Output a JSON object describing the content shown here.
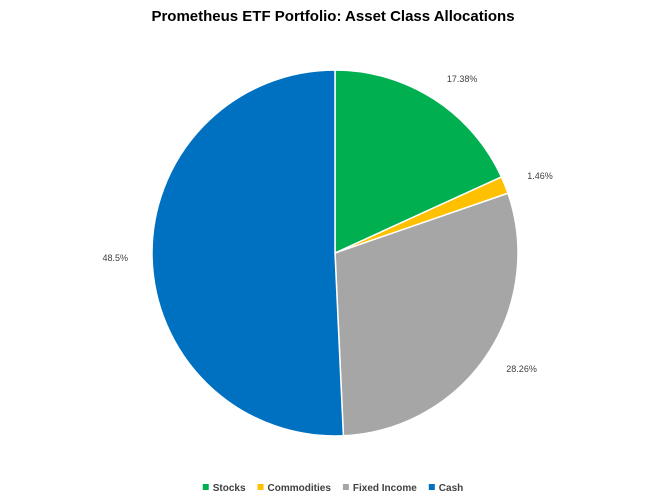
{
  "chart_data": {
    "type": "pie",
    "title": "Prometheus ETF Portfolio: Asset Class Allocations",
    "categories": [
      "Stocks",
      "Commodities",
      "Fixed Income",
      "Cash"
    ],
    "values": [
      17.38,
      1.46,
      28.26,
      48.5
    ],
    "data_labels": [
      "17.38%",
      "1.46%",
      "28.26%",
      "48.5%"
    ],
    "colors": [
      "#00B050",
      "#FFC000",
      "#A6A6A6",
      "#0070C0"
    ],
    "legend": {
      "position": "bottom",
      "items": [
        "Stocks",
        "Commodities",
        "Fixed Income",
        "Cash"
      ]
    }
  }
}
